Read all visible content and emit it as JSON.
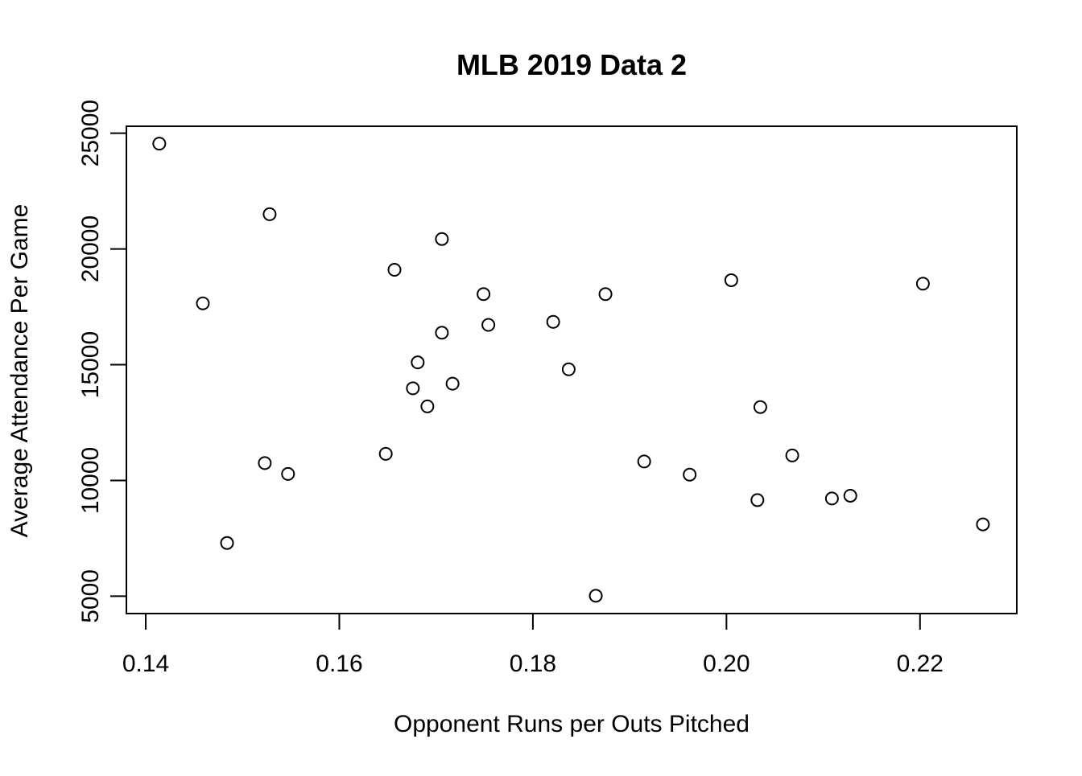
{
  "chart_data": {
    "type": "scatter",
    "title": "MLB 2019 Data 2",
    "xlabel": "Opponent Runs per Outs Pitched",
    "ylabel": "Average Attendance Per Game",
    "xlim": [
      0.138,
      0.23
    ],
    "ylim": [
      4250,
      25300
    ],
    "x_ticks": [
      0.14,
      0.16,
      0.18,
      0.2,
      0.22
    ],
    "x_tick_labels": [
      "0.14",
      "0.16",
      "0.18",
      "0.20",
      "0.22"
    ],
    "y_ticks": [
      5000,
      10000,
      15000,
      20000,
      25000
    ],
    "y_tick_labels": [
      "5000",
      "10000",
      "15000",
      "20000",
      "25000"
    ],
    "grid": false,
    "legend": "none",
    "marker": "open-circle",
    "points": [
      {
        "x": 0.1414,
        "y": 24550
      },
      {
        "x": 0.1459,
        "y": 17650
      },
      {
        "x": 0.1484,
        "y": 7300
      },
      {
        "x": 0.1523,
        "y": 10750
      },
      {
        "x": 0.1528,
        "y": 21500
      },
      {
        "x": 0.1547,
        "y": 10280
      },
      {
        "x": 0.1648,
        "y": 11150
      },
      {
        "x": 0.1657,
        "y": 19100
      },
      {
        "x": 0.1676,
        "y": 13980
      },
      {
        "x": 0.1681,
        "y": 15100
      },
      {
        "x": 0.1691,
        "y": 13200
      },
      {
        "x": 0.1706,
        "y": 20430
      },
      {
        "x": 0.1706,
        "y": 16380
      },
      {
        "x": 0.1717,
        "y": 14180
      },
      {
        "x": 0.1749,
        "y": 18050
      },
      {
        "x": 0.1754,
        "y": 16720
      },
      {
        "x": 0.1821,
        "y": 16850
      },
      {
        "x": 0.1837,
        "y": 14800
      },
      {
        "x": 0.1865,
        "y": 5020
      },
      {
        "x": 0.1875,
        "y": 18050
      },
      {
        "x": 0.1915,
        "y": 10820
      },
      {
        "x": 0.1962,
        "y": 10250
      },
      {
        "x": 0.2005,
        "y": 18650
      },
      {
        "x": 0.2032,
        "y": 9150
      },
      {
        "x": 0.2035,
        "y": 13170
      },
      {
        "x": 0.2068,
        "y": 11080
      },
      {
        "x": 0.2109,
        "y": 9220
      },
      {
        "x": 0.2128,
        "y": 9340
      },
      {
        "x": 0.2203,
        "y": 18500
      },
      {
        "x": 0.2265,
        "y": 8100
      }
    ]
  }
}
